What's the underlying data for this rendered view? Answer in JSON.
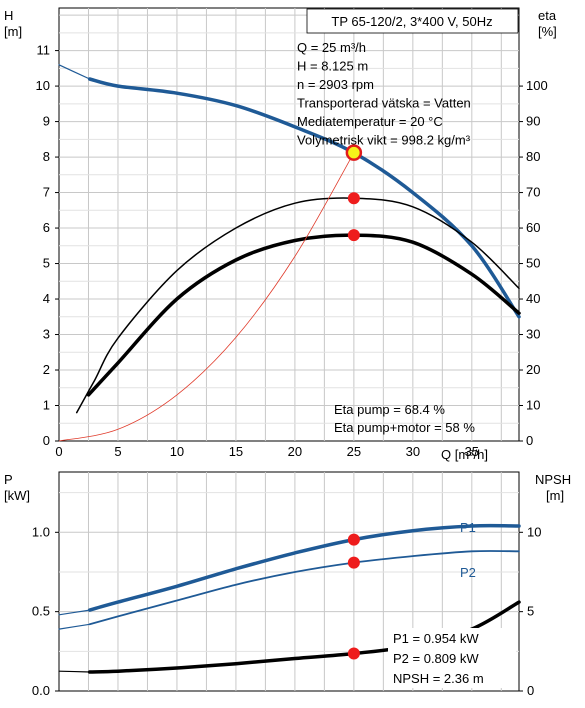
{
  "chart_data": [
    {
      "type": "line",
      "name": "head-efficiency",
      "title": "TP 65-120/2, 3*400 V, 50Hz",
      "xlabel": "Q [m³/h]",
      "ylabel_left_name": "H",
      "ylabel_left_unit": "[m]",
      "ylabel_right_name": "eta",
      "ylabel_right_unit": "[%]",
      "xlim": [
        0,
        39
      ],
      "ylim_left": [
        0,
        12.2
      ],
      "ylim_right": [
        0,
        122
      ],
      "grid": true,
      "xticks": [
        0,
        5,
        10,
        15,
        20,
        25,
        30,
        35
      ],
      "yticks_left": [
        0,
        1,
        2,
        3,
        4,
        5,
        6,
        7,
        8,
        9,
        10,
        11
      ],
      "yticks_right": [
        0,
        10,
        20,
        30,
        40,
        50,
        60,
        70,
        80,
        90,
        100
      ],
      "info_lines": [
        "Q = 25 m³/h",
        "H = 8.125 m",
        "n = 2903 rpm",
        "Transporterad vätska = Vatten",
        "Mediatemperatur = 20 °C",
        "Volymetrisk vikt = 998.2 kg/m³"
      ],
      "eta_labels": [
        "Eta pump = 68.4 %",
        "Eta pump+motor = 58 %"
      ],
      "series": [
        {
          "key": "H",
          "axis": "left",
          "color": "#1f5a96",
          "width": 3.5,
          "x": [
            2.6,
            5,
            10,
            15,
            20,
            25,
            30,
            35,
            39
          ],
          "y": [
            10.2,
            10.0,
            9.8,
            9.45,
            8.85,
            8.12,
            7.0,
            5.5,
            3.5
          ]
        },
        {
          "key": "H-dashed-start",
          "axis": "left",
          "color": "#1f5a96",
          "width": 1.2,
          "x": [
            0,
            2.6
          ],
          "y": [
            10.6,
            10.2
          ]
        },
        {
          "key": "eta-pump",
          "axis": "right",
          "color": "#000000",
          "width": 1.5,
          "x": [
            1.5,
            3,
            5,
            10,
            15,
            20,
            25,
            30,
            35,
            39
          ],
          "y": [
            8,
            17,
            29,
            48,
            60,
            67,
            68.4,
            66,
            56,
            43
          ]
        },
        {
          "key": "eta-pump-motor",
          "axis": "right",
          "color": "#000000",
          "width": 3.5,
          "x": [
            2.5,
            5,
            10,
            15,
            20,
            25,
            30,
            35,
            39
          ],
          "y": [
            13,
            22,
            40,
            51,
            56.5,
            58,
            56,
            47,
            36
          ]
        },
        {
          "key": "system-curve",
          "axis": "left",
          "color": "#e03a2a",
          "width": 0.8,
          "x": [
            0,
            5,
            10,
            15,
            20,
            25
          ],
          "y": [
            0,
            0.33,
            1.3,
            2.92,
            5.2,
            8.12
          ]
        }
      ],
      "points": [
        {
          "axis": "left",
          "x": 25,
          "y": 8.125,
          "style": "yellow"
        },
        {
          "axis": "right",
          "x": 25,
          "y": 68.4,
          "style": "red"
        },
        {
          "axis": "right",
          "x": 25,
          "y": 58,
          "style": "red"
        }
      ]
    },
    {
      "type": "line",
      "name": "power-npsh",
      "ylabel_left_name": "P",
      "ylabel_left_unit": "[kW]",
      "ylabel_right_name": "NPSH",
      "ylabel_right_unit": "[m]",
      "xlim": [
        0,
        39
      ],
      "ylim_left": [
        0,
        1.38
      ],
      "ylim_right": [
        0,
        13.8
      ],
      "grid": true,
      "yticks_left": [
        0.0,
        0.5,
        1.0
      ],
      "yticks_left_labels": [
        "0.0",
        "0.5",
        "1.0"
      ],
      "yticks_right": [
        0,
        5,
        10
      ],
      "series_labels": [
        "P1",
        "P2"
      ],
      "values_text": [
        "P1 = 0.954 kW",
        "P2 = 0.809 kW",
        "NPSH = 2.36 m"
      ],
      "series": [
        {
          "key": "P1",
          "axis": "left",
          "color": "#1f5a96",
          "width": 3.5,
          "x": [
            2.6,
            5,
            10,
            15,
            20,
            25,
            30,
            35,
            39
          ],
          "y": [
            0.51,
            0.56,
            0.66,
            0.77,
            0.87,
            0.954,
            1.01,
            1.04,
            1.04
          ]
        },
        {
          "key": "P1-dashed-start",
          "axis": "left",
          "color": "#1f5a96",
          "width": 1.2,
          "x": [
            0,
            2.6
          ],
          "y": [
            0.48,
            0.51
          ]
        },
        {
          "key": "P2",
          "axis": "left",
          "color": "#1f5a96",
          "width": 1.8,
          "x": [
            2.6,
            5,
            10,
            15,
            20,
            25,
            30,
            35,
            39
          ],
          "y": [
            0.42,
            0.47,
            0.57,
            0.67,
            0.75,
            0.809,
            0.85,
            0.88,
            0.88
          ]
        },
        {
          "key": "P2-dashed-start",
          "axis": "left",
          "color": "#1f5a96",
          "width": 1.2,
          "x": [
            0,
            2.6
          ],
          "y": [
            0.39,
            0.42
          ]
        },
        {
          "key": "NPSH",
          "axis": "right",
          "color": "#000000",
          "width": 3.5,
          "x": [
            2.6,
            5,
            10,
            15,
            20,
            25,
            30,
            35,
            39
          ],
          "y": [
            1.2,
            1.25,
            1.45,
            1.72,
            2.05,
            2.36,
            2.85,
            3.9,
            5.6
          ]
        },
        {
          "key": "NPSH-dashed-start",
          "axis": "right",
          "color": "#000000",
          "width": 1.2,
          "x": [
            0,
            2.6
          ],
          "y": [
            1.25,
            1.2
          ]
        }
      ],
      "points": [
        {
          "axis": "left",
          "x": 25,
          "y": 0.954,
          "style": "red"
        },
        {
          "axis": "left",
          "x": 25,
          "y": 0.809,
          "style": "red"
        },
        {
          "axis": "right",
          "x": 25,
          "y": 2.36,
          "style": "red"
        }
      ]
    }
  ]
}
